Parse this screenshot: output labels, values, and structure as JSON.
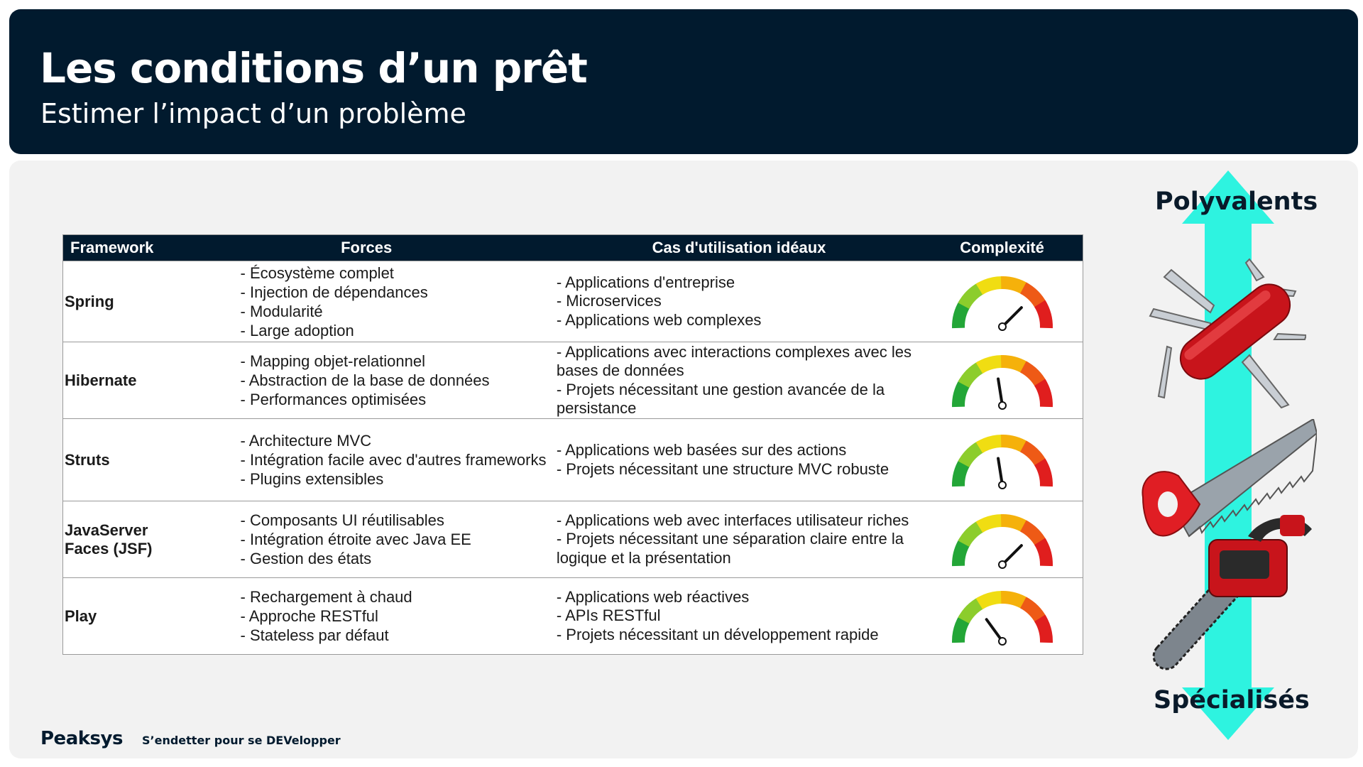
{
  "header": {
    "title": "Les conditions d’un prêt",
    "subtitle": "Estimer l’impact d’un problème"
  },
  "table": {
    "headers": [
      "Framework",
      "Forces",
      "Cas d'utilisation idéaux",
      "Complexité"
    ],
    "rows": [
      {
        "name": "Spring",
        "forces": [
          "Écosystème complet",
          "Injection de dépendances",
          "Modularité",
          "Large adoption"
        ],
        "cas": [
          "Applications d'entreprise",
          "Microservices",
          "Applications web complexes"
        ],
        "complexity": 0.75
      },
      {
        "name": "Hibernate",
        "forces": [
          "Mapping objet-relationnel",
          "Abstraction de la base de données",
          "Performances optimisées"
        ],
        "cas": [
          "Applications avec interactions complexes avec les bases de données",
          "Projets nécessitant une gestion avancée de la persistance"
        ],
        "complexity": 0.45
      },
      {
        "name": "Struts",
        "forces": [
          "Architecture MVC",
          "Intégration facile avec d'autres frameworks",
          "Plugins extensibles"
        ],
        "cas": [
          "Applications web basées sur des actions",
          "Projets nécessitant une structure MVC robuste"
        ],
        "complexity": 0.45
      },
      {
        "name": "JavaServer Faces (JSF)",
        "forces": [
          "Composants UI réutilisables",
          "Intégration étroite avec Java EE",
          "Gestion des états"
        ],
        "cas": [
          "Applications web avec interfaces utilisateur riches",
          "Projets nécessitant une séparation claire entre la logique et la présentation"
        ],
        "complexity": 0.75
      },
      {
        "name": "Play",
        "forces": [
          "Rechargement à chaud",
          "Approche RESTful",
          "Stateless par défaut"
        ],
        "cas": [
          "Applications web réactives",
          "APIs RESTful",
          "Projets nécessitant un développement rapide"
        ],
        "complexity": 0.3
      }
    ]
  },
  "scale": {
    "top_label": "Polyvalents",
    "bottom_label": "Spécialisés",
    "tools": [
      "swiss-army-knife-icon",
      "hand-saw-icon",
      "chainsaw-icon"
    ],
    "arrow_color": "#2ef3e0"
  },
  "footer": {
    "logo": "Peaksys",
    "tagline": "S’endetter pour se DEVelopper"
  },
  "colors": {
    "header_bg": "#011a2e",
    "gauge": [
      "#23a637",
      "#8ccd2c",
      "#f0dd12",
      "#f5b10b",
      "#ee5a16",
      "#e01e1e"
    ]
  }
}
